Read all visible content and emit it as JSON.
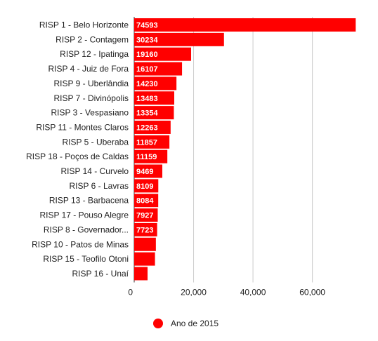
{
  "chart_data": {
    "type": "bar",
    "orientation": "horizontal",
    "categories": [
      "RISP 1 - Belo Horizonte",
      "RISP 2 - Contagem",
      "RISP 12 - Ipatinga",
      "RISP 4 - Juiz de Fora",
      "RISP 9 - Uberlândia",
      "RISP 7 - Divinópolis",
      "RISP 3 - Vespasiano",
      "RISP 11 - Montes Claros",
      "RISP 5 - Uberaba",
      "RISP 18 - Poços de Caldas",
      "RISP 14 - Curvelo",
      "RISP 6 - Lavras",
      "RISP 13 - Barbacena",
      "RISP 17 - Pouso Alegre",
      "RISP 8 - Governador...",
      "RISP 10 - Patos de Minas",
      "RISP 15 - Teofilo Otoni",
      "RISP 16 - Unaí"
    ],
    "series": [
      {
        "name": "Ano de 2015",
        "color": "#ff0000",
        "values": [
          74593,
          30234,
          19160,
          16107,
          14230,
          13483,
          13354,
          12263,
          11857,
          11159,
          9469,
          8109,
          8084,
          7927,
          7723,
          7300,
          7000,
          4500
        ],
        "data_labels": [
          "74593",
          "30234",
          "19160",
          "16107",
          "14230",
          "13483",
          "13354",
          "12263",
          "11857",
          "11159",
          "9469",
          "8109",
          "8084",
          "7927",
          "7723",
          "",
          "",
          ""
        ]
      }
    ],
    "xlim": [
      0,
      75000
    ],
    "x_ticks": [
      0,
      20000,
      40000,
      60000
    ],
    "x_tick_labels": [
      "0",
      "20,000",
      "40,000",
      "60,000"
    ],
    "grid": true,
    "legend_position": "bottom"
  }
}
